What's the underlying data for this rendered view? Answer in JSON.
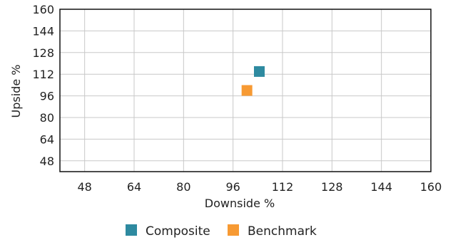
{
  "chart_data": {
    "type": "scatter",
    "xlabel": "Downside %",
    "ylabel": "Upside %",
    "xlim": [
      40,
      160
    ],
    "ylim": [
      40,
      160
    ],
    "x_ticks": [
      48,
      64,
      80,
      96,
      112,
      128,
      144,
      160
    ],
    "y_ticks": [
      48,
      64,
      80,
      96,
      112,
      128,
      144,
      160
    ],
    "grid": true,
    "legend_position": "bottom",
    "series": [
      {
        "name": "Composite",
        "color": "#2e8aa0",
        "points": [
          {
            "x": 104.5,
            "y": 114
          }
        ]
      },
      {
        "name": "Benchmark",
        "color": "#f79a33",
        "points": [
          {
            "x": 100.5,
            "y": 100
          }
        ]
      }
    ]
  }
}
